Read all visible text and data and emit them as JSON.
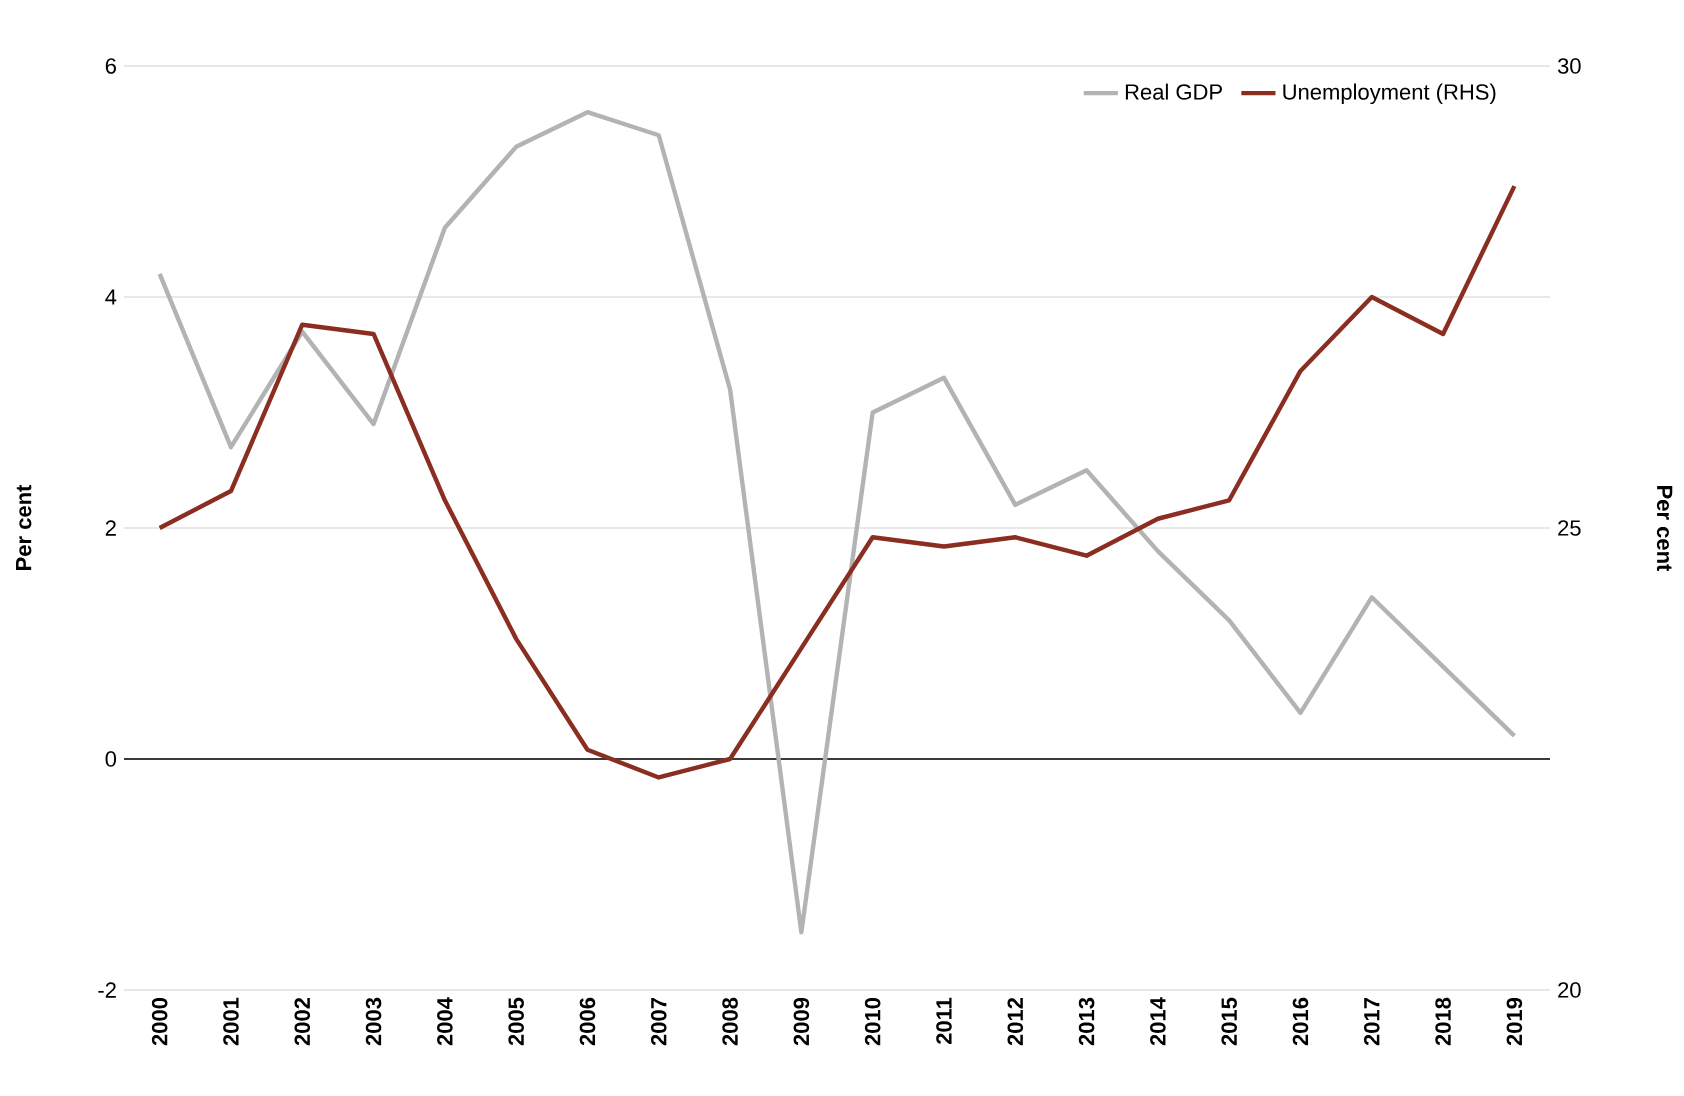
{
  "chart_data": {
    "type": "line",
    "categories": [
      "2000",
      "2001",
      "2002",
      "2003",
      "2004",
      "2005",
      "2006",
      "2007",
      "2008",
      "2009",
      "2010",
      "2011",
      "2012",
      "2013",
      "2014",
      "2015",
      "2016",
      "2017",
      "2018",
      "2019"
    ],
    "ylabel": "Per cent",
    "y2label": "Per cent",
    "ylim": [
      -2,
      6
    ],
    "yticks": [
      -2,
      0,
      2,
      4,
      6
    ],
    "y2lim": [
      20,
      30
    ],
    "y2ticks": [
      20,
      25,
      30
    ],
    "grid": "y",
    "legend": "top right",
    "marker": "none",
    "line_style": "solid",
    "ref_lines": [
      {
        "axis": "y",
        "value": 0,
        "color": "#000000"
      }
    ],
    "series": [
      {
        "name": "Real GDP",
        "color": "#b3b3b3",
        "values": [
          4.2,
          2.7,
          3.7,
          2.9,
          4.6,
          5.3,
          5.6,
          5.4,
          3.2,
          -1.5,
          3.0,
          3.3,
          2.2,
          2.5,
          1.8,
          1.2,
          0.4,
          1.4,
          0.8,
          0.2
        ]
      },
      {
        "name": "Unemployment (RHS)",
        "color": "#8b2e22",
        "axis": "y2",
        "values": [
          25.0,
          25.4,
          27.2,
          27.1,
          25.3,
          23.8,
          22.6,
          22.3,
          22.5,
          23.7,
          24.9,
          24.8,
          24.9,
          24.7,
          25.1,
          25.3,
          26.7,
          27.5,
          27.1,
          28.7
        ]
      }
    ]
  }
}
